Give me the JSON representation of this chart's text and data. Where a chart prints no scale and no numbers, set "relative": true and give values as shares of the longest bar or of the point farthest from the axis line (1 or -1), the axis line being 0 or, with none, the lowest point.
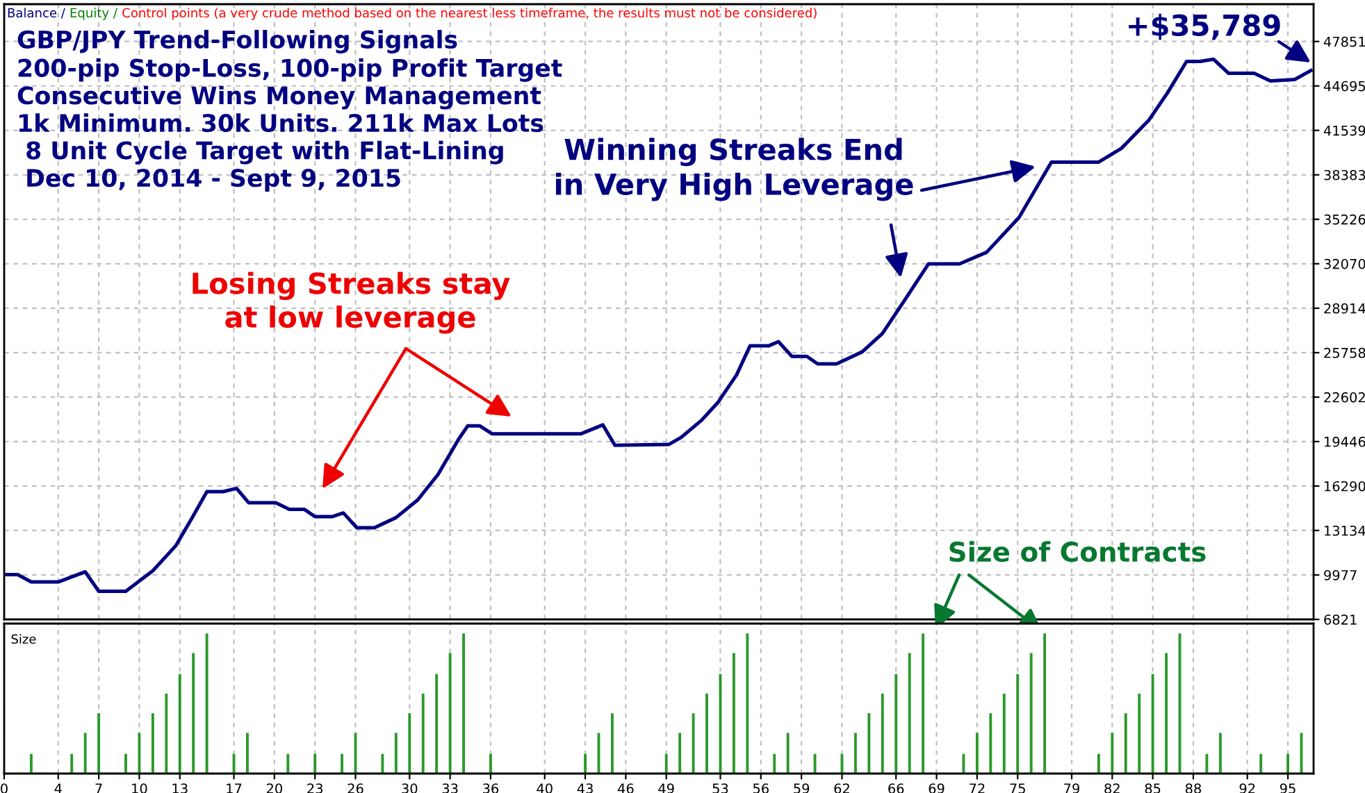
{
  "chart_data": [
    {
      "type": "line",
      "title": "GBP/JPY Trend-Following Signals",
      "subtitle": "200-pip Stop-Loss, 100-pip Profit Target\nConsecutive Wins Money Management\n1k Minimum. 30k Units. 211k Max Lots\n 8 Unit Cycle Target with Flat-Lining\n Dec 10, 2014 - Sept 9, 2015",
      "annotations": [
        "Balance /",
        "Equity /",
        "Control points (a very crude method based on the nearest less timeframe, the results must not be considered)",
        "Losing Streaks stay\nat low leverage",
        "Winning Streaks End\nin Very High Leverage",
        "+$35,789",
        "Size of Contracts"
      ],
      "x": [
        0,
        1,
        2,
        4,
        6,
        7,
        9,
        11,
        12.7,
        13.9,
        15,
        16.2,
        17.2,
        18.1,
        20.1,
        21.1,
        22.2,
        23,
        24.3,
        25.1,
        26.1,
        27.4,
        29,
        30.6,
        32.1,
        33.6,
        34.3,
        35.2,
        36.1,
        42.7,
        44.3,
        45.2,
        49.2,
        50.1,
        51.6,
        52.8,
        54.2,
        55.2,
        56.6,
        57.3,
        58.3,
        59.4,
        60.2,
        61.6,
        63.5,
        65,
        66.6,
        68.4,
        70.7,
        72.7,
        75.1,
        77.5,
        78.4,
        81,
        82.7,
        84.7,
        86.1,
        87.5,
        88.5,
        89.5,
        90.6,
        92.5,
        93.7,
        95.5,
        96.7
      ],
      "series": [
        {
          "color": "#000080",
          "values": [
            10000,
            10000,
            9480,
            9480,
            10200,
            8820,
            8820,
            10270,
            12050,
            14020,
            15890,
            15890,
            16120,
            15100,
            15100,
            14640,
            14640,
            14120,
            14120,
            14380,
            13330,
            13330,
            14050,
            15300,
            17100,
            19570,
            20560,
            20560,
            20000,
            20000,
            20630,
            19180,
            19250,
            19740,
            20950,
            22200,
            24180,
            26250,
            26250,
            26540,
            25490,
            25490,
            24960,
            24960,
            25820,
            27130,
            29430,
            32060,
            32060,
            32880,
            35350,
            39290,
            39290,
            39290,
            40280,
            42250,
            44220,
            46430,
            46430,
            46590,
            45600,
            45600,
            45050,
            45150,
            45789
          ]
        }
      ],
      "xlim": [
        0,
        96.9
      ],
      "xticks": [
        0,
        4,
        7,
        10,
        13,
        17,
        20,
        23,
        26,
        30,
        33,
        36,
        40,
        43,
        46,
        49,
        53,
        56,
        59,
        62,
        66,
        69,
        72,
        75,
        79,
        82,
        85,
        88,
        92,
        95
      ],
      "ylim": [
        6821,
        50500
      ],
      "yticks": [
        6821,
        9977,
        13134,
        16290,
        19446,
        22602,
        25758,
        28914,
        32070,
        35226,
        38383,
        41539,
        44695,
        47851
      ],
      "tick_labels": "y",
      "grid": true,
      "line_style": "solid",
      "marker": "none"
    },
    {
      "type": "bar",
      "title": "Size",
      "relative": true,
      "color": "#2a9a2a",
      "x": [
        2,
        5,
        6,
        7,
        9,
        10,
        11,
        12,
        13,
        14,
        15,
        17,
        18,
        21,
        23,
        25,
        26,
        28,
        29,
        30,
        31,
        32,
        33,
        34,
        36,
        43,
        44,
        45,
        49,
        50,
        51,
        52,
        53,
        54,
        55,
        57,
        58,
        60,
        62,
        63,
        64,
        65,
        66,
        67,
        68,
        71,
        72,
        73,
        74,
        75,
        76,
        77,
        81,
        82,
        83,
        84,
        85,
        86,
        87,
        89,
        90,
        93,
        95,
        96
      ],
      "values": [
        0.14,
        0.14,
        0.29,
        0.43,
        0.14,
        0.29,
        0.43,
        0.57,
        0.71,
        0.86,
        1,
        0.14,
        0.29,
        0.14,
        0.14,
        0.14,
        0.29,
        0.14,
        0.29,
        0.43,
        0.57,
        0.71,
        0.86,
        1,
        0.14,
        0.14,
        0.29,
        0.43,
        0.14,
        0.29,
        0.43,
        0.57,
        0.71,
        0.86,
        1,
        0.14,
        0.29,
        0.14,
        0.14,
        0.29,
        0.43,
        0.57,
        0.71,
        0.86,
        1,
        0.14,
        0.29,
        0.43,
        0.57,
        0.71,
        0.86,
        1,
        0.14,
        0.29,
        0.43,
        0.57,
        0.71,
        0.86,
        1,
        0.14,
        0.29,
        0.14,
        0.14,
        0.29
      ],
      "xlim": [
        0,
        96.9
      ],
      "xticks": [
        0,
        4,
        7,
        10,
        13,
        17,
        20,
        23,
        26,
        30,
        33,
        36,
        40,
        43,
        46,
        49,
        53,
        56,
        59,
        62,
        66,
        69,
        72,
        75,
        79,
        82,
        85,
        88,
        92,
        95
      ],
      "grid": "x"
    }
  ]
}
